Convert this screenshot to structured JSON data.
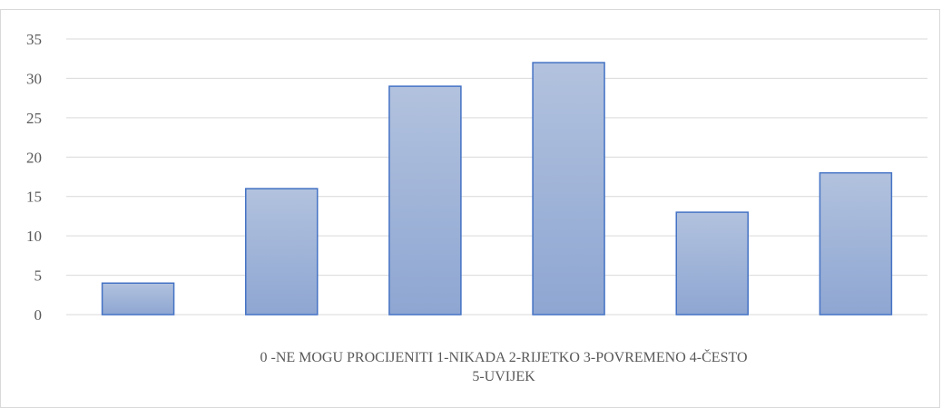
{
  "chart_data": {
    "type": "bar",
    "categories": [
      "0",
      "1",
      "2",
      "3",
      "4",
      "5"
    ],
    "values": [
      4,
      16,
      29,
      32,
      13,
      18
    ],
    "title": "",
    "xlabel_lines": [
      "0 -NE MOGU PROCIJENITI 1-NIKADA 2-RIJETKO 3-POVREMENO 4-ČESTO",
      "5-UVIJEK"
    ],
    "ylabel": "",
    "ylim": [
      0,
      35
    ],
    "yticks": [
      "0",
      "5",
      "10",
      "15",
      "20",
      "25",
      "30",
      "35"
    ],
    "grid": true,
    "legend": "none",
    "bar_fill_top": "#b2c2de",
    "bar_fill_bottom": "#8ea6d2",
    "bar_stroke": "#4472c4",
    "grid_color": "#d9d9d9",
    "tick_label_color": "#595959"
  }
}
